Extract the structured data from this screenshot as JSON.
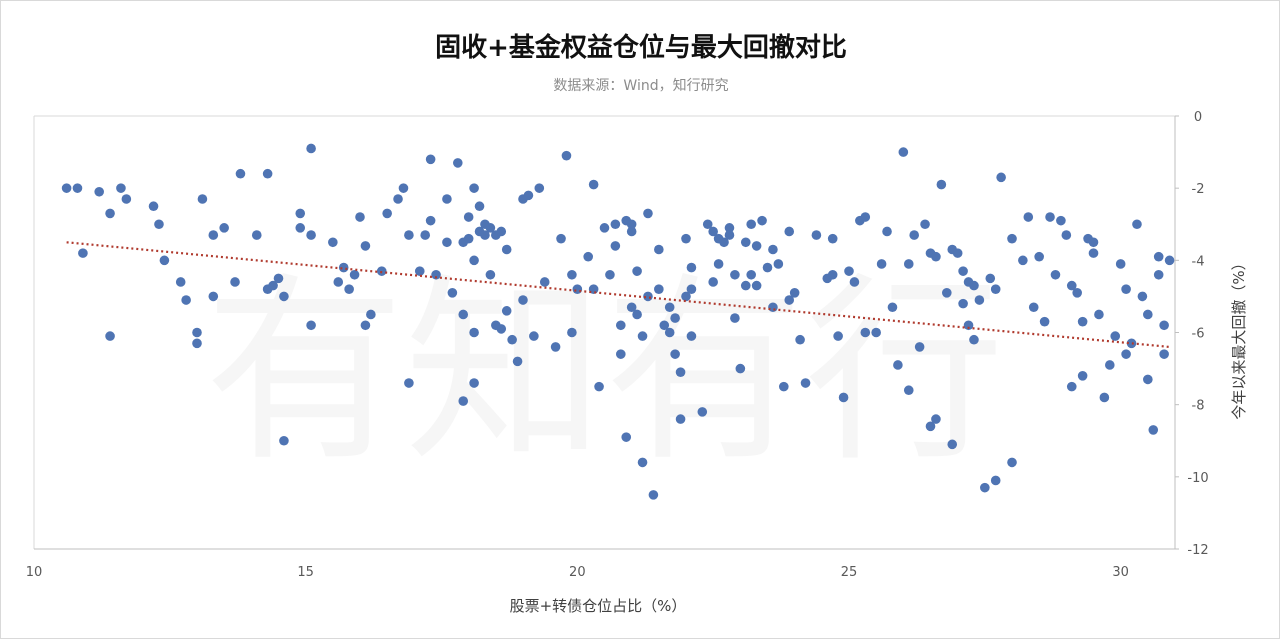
{
  "chart_data": {
    "type": "scatter",
    "title": "固收+基金权益仓位与最大回撤对比",
    "subtitle": "数据来源：Wind，知行研究",
    "xlabel": "股票+转债仓位占比（%）",
    "ylabel": "今年以来最大回撤（%）",
    "xlim": [
      10,
      31
    ],
    "ylim": [
      -12,
      0
    ],
    "x_ticks": [
      10,
      15,
      20,
      25,
      30
    ],
    "y_ticks": [
      0,
      -2,
      -4,
      -6,
      -8,
      -10,
      -12
    ],
    "x_tick_labels": [
      "10",
      "15",
      "20",
      "25",
      "30"
    ],
    "y_tick_labels": [
      "0",
      "-2",
      "-4",
      "-6",
      "-8",
      "-10",
      "-12"
    ],
    "y_axis_position": "right",
    "grid": false,
    "watermark": "有知有行",
    "colors": {
      "points": "#4f74b3",
      "trendline": "#b03a2e"
    },
    "trendline": {
      "style": "dotted",
      "linear": true,
      "points": [
        [
          10.6,
          -3.5
        ],
        [
          30.9,
          -6.4
        ]
      ]
    },
    "points": [
      [
        10.6,
        -2.0
      ],
      [
        10.8,
        -2.0
      ],
      [
        10.9,
        -3.8
      ],
      [
        11.2,
        -2.1
      ],
      [
        11.4,
        -2.7
      ],
      [
        11.4,
        -6.1
      ],
      [
        11.6,
        -2.0
      ],
      [
        11.7,
        -2.3
      ],
      [
        12.2,
        -2.5
      ],
      [
        12.3,
        -3.0
      ],
      [
        12.4,
        -4.0
      ],
      [
        12.7,
        -4.6
      ],
      [
        12.8,
        -5.1
      ],
      [
        13.0,
        -6.0
      ],
      [
        13.0,
        -6.3
      ],
      [
        13.1,
        -2.3
      ],
      [
        13.3,
        -3.3
      ],
      [
        13.3,
        -5.0
      ],
      [
        13.5,
        -3.1
      ],
      [
        13.7,
        -4.6
      ],
      [
        13.8,
        -1.6
      ],
      [
        14.1,
        -3.3
      ],
      [
        14.3,
        -4.8
      ],
      [
        14.3,
        -1.6
      ],
      [
        14.4,
        -4.7
      ],
      [
        14.5,
        -4.5
      ],
      [
        14.6,
        -5.0
      ],
      [
        14.6,
        -9.0
      ],
      [
        14.9,
        -2.7
      ],
      [
        14.9,
        -3.1
      ],
      [
        15.1,
        -3.3
      ],
      [
        15.1,
        -0.9
      ],
      [
        15.1,
        -5.8
      ],
      [
        15.5,
        -3.5
      ],
      [
        15.6,
        -4.6
      ],
      [
        15.7,
        -4.2
      ],
      [
        15.8,
        -4.8
      ],
      [
        15.9,
        -4.4
      ],
      [
        16.0,
        -2.8
      ],
      [
        16.1,
        -3.6
      ],
      [
        16.1,
        -5.8
      ],
      [
        16.2,
        -5.5
      ],
      [
        16.4,
        -4.3
      ],
      [
        16.5,
        -2.7
      ],
      [
        16.7,
        -2.3
      ],
      [
        16.8,
        -2.0
      ],
      [
        16.9,
        -7.4
      ],
      [
        16.9,
        -3.3
      ],
      [
        17.1,
        -4.3
      ],
      [
        17.2,
        -3.3
      ],
      [
        17.3,
        -1.2
      ],
      [
        17.3,
        -2.9
      ],
      [
        17.4,
        -4.4
      ],
      [
        17.6,
        -3.5
      ],
      [
        17.6,
        -2.3
      ],
      [
        17.7,
        -4.9
      ],
      [
        17.8,
        -1.3
      ],
      [
        17.9,
        -3.5
      ],
      [
        17.9,
        -5.5
      ],
      [
        17.9,
        -7.9
      ],
      [
        18.0,
        -2.8
      ],
      [
        18.0,
        -3.4
      ],
      [
        18.1,
        -2.0
      ],
      [
        18.1,
        -4.0
      ],
      [
        18.1,
        -6.0
      ],
      [
        18.1,
        -7.4
      ],
      [
        18.2,
        -2.5
      ],
      [
        18.2,
        -3.2
      ],
      [
        18.3,
        -3.0
      ],
      [
        18.3,
        -3.3
      ],
      [
        18.4,
        -3.1
      ],
      [
        18.4,
        -4.4
      ],
      [
        18.5,
        -3.3
      ],
      [
        18.5,
        -5.8
      ],
      [
        18.6,
        -3.2
      ],
      [
        18.6,
        -5.9
      ],
      [
        18.7,
        -3.7
      ],
      [
        18.7,
        -5.4
      ],
      [
        18.8,
        -6.2
      ],
      [
        18.9,
        -6.8
      ],
      [
        19.0,
        -2.3
      ],
      [
        19.0,
        -5.1
      ],
      [
        19.1,
        -2.2
      ],
      [
        19.2,
        -6.1
      ],
      [
        19.3,
        -2.0
      ],
      [
        19.4,
        -4.6
      ],
      [
        19.6,
        -6.4
      ],
      [
        19.7,
        -3.4
      ],
      [
        19.8,
        -1.1
      ],
      [
        19.9,
        -4.4
      ],
      [
        19.9,
        -6.0
      ],
      [
        20.0,
        -4.8
      ],
      [
        20.2,
        -3.9
      ],
      [
        20.3,
        -1.9
      ],
      [
        20.3,
        -4.8
      ],
      [
        20.4,
        -7.5
      ],
      [
        20.5,
        -3.1
      ],
      [
        20.6,
        -4.4
      ],
      [
        20.7,
        -3.0
      ],
      [
        20.7,
        -3.6
      ],
      [
        20.8,
        -5.8
      ],
      [
        20.8,
        -6.6
      ],
      [
        20.9,
        -2.9
      ],
      [
        20.9,
        -8.9
      ],
      [
        21.0,
        -3.0
      ],
      [
        21.0,
        -3.2
      ],
      [
        21.0,
        -5.3
      ],
      [
        21.1,
        -4.3
      ],
      [
        21.1,
        -5.5
      ],
      [
        21.2,
        -6.1
      ],
      [
        21.2,
        -9.6
      ],
      [
        21.3,
        -2.7
      ],
      [
        21.3,
        -5.0
      ],
      [
        21.4,
        -10.5
      ],
      [
        21.5,
        -3.7
      ],
      [
        21.5,
        -4.8
      ],
      [
        21.6,
        -5.8
      ],
      [
        21.7,
        -6.0
      ],
      [
        21.7,
        -5.3
      ],
      [
        21.8,
        -5.6
      ],
      [
        21.8,
        -6.6
      ],
      [
        21.9,
        -7.1
      ],
      [
        21.9,
        -8.4
      ],
      [
        22.0,
        -5.0
      ],
      [
        22.0,
        -3.4
      ],
      [
        22.1,
        -4.2
      ],
      [
        22.1,
        -4.8
      ],
      [
        22.1,
        -6.1
      ],
      [
        22.3,
        -8.2
      ],
      [
        22.4,
        -3.0
      ],
      [
        22.5,
        -3.2
      ],
      [
        22.5,
        -4.6
      ],
      [
        22.6,
        -3.4
      ],
      [
        22.6,
        -4.1
      ],
      [
        22.7,
        -3.5
      ],
      [
        22.8,
        -3.1
      ],
      [
        22.8,
        -3.3
      ],
      [
        22.9,
        -4.4
      ],
      [
        22.9,
        -5.6
      ],
      [
        23.0,
        -7.0
      ],
      [
        23.1,
        -3.5
      ],
      [
        23.1,
        -4.7
      ],
      [
        23.2,
        -3.0
      ],
      [
        23.2,
        -4.4
      ],
      [
        23.3,
        -3.6
      ],
      [
        23.3,
        -4.7
      ],
      [
        23.4,
        -2.9
      ],
      [
        23.5,
        -4.2
      ],
      [
        23.6,
        -3.7
      ],
      [
        23.6,
        -5.3
      ],
      [
        23.7,
        -4.1
      ],
      [
        23.8,
        -7.5
      ],
      [
        23.9,
        -3.2
      ],
      [
        23.9,
        -5.1
      ],
      [
        24.0,
        -4.9
      ],
      [
        24.1,
        -6.2
      ],
      [
        24.2,
        -7.4
      ],
      [
        24.4,
        -3.3
      ],
      [
        24.6,
        -4.5
      ],
      [
        24.7,
        -4.4
      ],
      [
        24.7,
        -3.4
      ],
      [
        24.8,
        -6.1
      ],
      [
        24.9,
        -7.8
      ],
      [
        25.0,
        -4.3
      ],
      [
        25.1,
        -4.6
      ],
      [
        25.2,
        -2.9
      ],
      [
        25.3,
        -6.0
      ],
      [
        25.3,
        -2.8
      ],
      [
        25.5,
        -6.0
      ],
      [
        25.6,
        -4.1
      ],
      [
        25.7,
        -3.2
      ],
      [
        25.8,
        -5.3
      ],
      [
        25.9,
        -6.9
      ],
      [
        26.0,
        -1.0
      ],
      [
        26.1,
        -4.1
      ],
      [
        26.1,
        -7.6
      ],
      [
        26.2,
        -3.3
      ],
      [
        26.3,
        -6.4
      ],
      [
        26.4,
        -3.0
      ],
      [
        26.5,
        -8.6
      ],
      [
        26.5,
        -3.8
      ],
      [
        26.6,
        -3.9
      ],
      [
        26.6,
        -8.4
      ],
      [
        26.7,
        -1.9
      ],
      [
        26.8,
        -4.9
      ],
      [
        26.9,
        -3.7
      ],
      [
        26.9,
        -9.1
      ],
      [
        27.0,
        -3.8
      ],
      [
        27.1,
        -4.3
      ],
      [
        27.1,
        -5.2
      ],
      [
        27.2,
        -4.6
      ],
      [
        27.2,
        -5.8
      ],
      [
        27.3,
        -4.7
      ],
      [
        27.3,
        -6.2
      ],
      [
        27.4,
        -5.1
      ],
      [
        27.5,
        -10.3
      ],
      [
        27.6,
        -4.5
      ],
      [
        27.7,
        -4.8
      ],
      [
        27.7,
        -10.1
      ],
      [
        27.8,
        -1.7
      ],
      [
        28.0,
        -9.6
      ],
      [
        28.0,
        -3.4
      ],
      [
        28.2,
        -4.0
      ],
      [
        28.3,
        -2.8
      ],
      [
        28.4,
        -5.3
      ],
      [
        28.5,
        -3.9
      ],
      [
        28.6,
        -5.7
      ],
      [
        28.7,
        -2.8
      ],
      [
        28.8,
        -4.4
      ],
      [
        28.9,
        -2.9
      ],
      [
        29.0,
        -3.3
      ],
      [
        29.1,
        -4.7
      ],
      [
        29.1,
        -7.5
      ],
      [
        29.2,
        -4.9
      ],
      [
        29.3,
        -7.2
      ],
      [
        29.3,
        -5.7
      ],
      [
        29.4,
        -3.4
      ],
      [
        29.5,
        -3.5
      ],
      [
        29.5,
        -3.8
      ],
      [
        29.6,
        -5.5
      ],
      [
        29.7,
        -7.8
      ],
      [
        29.8,
        -6.9
      ],
      [
        29.9,
        -6.1
      ],
      [
        30.0,
        -4.1
      ],
      [
        30.1,
        -4.8
      ],
      [
        30.1,
        -6.6
      ],
      [
        30.2,
        -6.3
      ],
      [
        30.3,
        -3.0
      ],
      [
        30.4,
        -5.0
      ],
      [
        30.5,
        -5.5
      ],
      [
        30.5,
        -7.3
      ],
      [
        30.6,
        -8.7
      ],
      [
        30.7,
        -3.9
      ],
      [
        30.7,
        -4.4
      ],
      [
        30.8,
        -6.6
      ],
      [
        30.8,
        -5.8
      ],
      [
        30.9,
        -4.0
      ]
    ]
  }
}
